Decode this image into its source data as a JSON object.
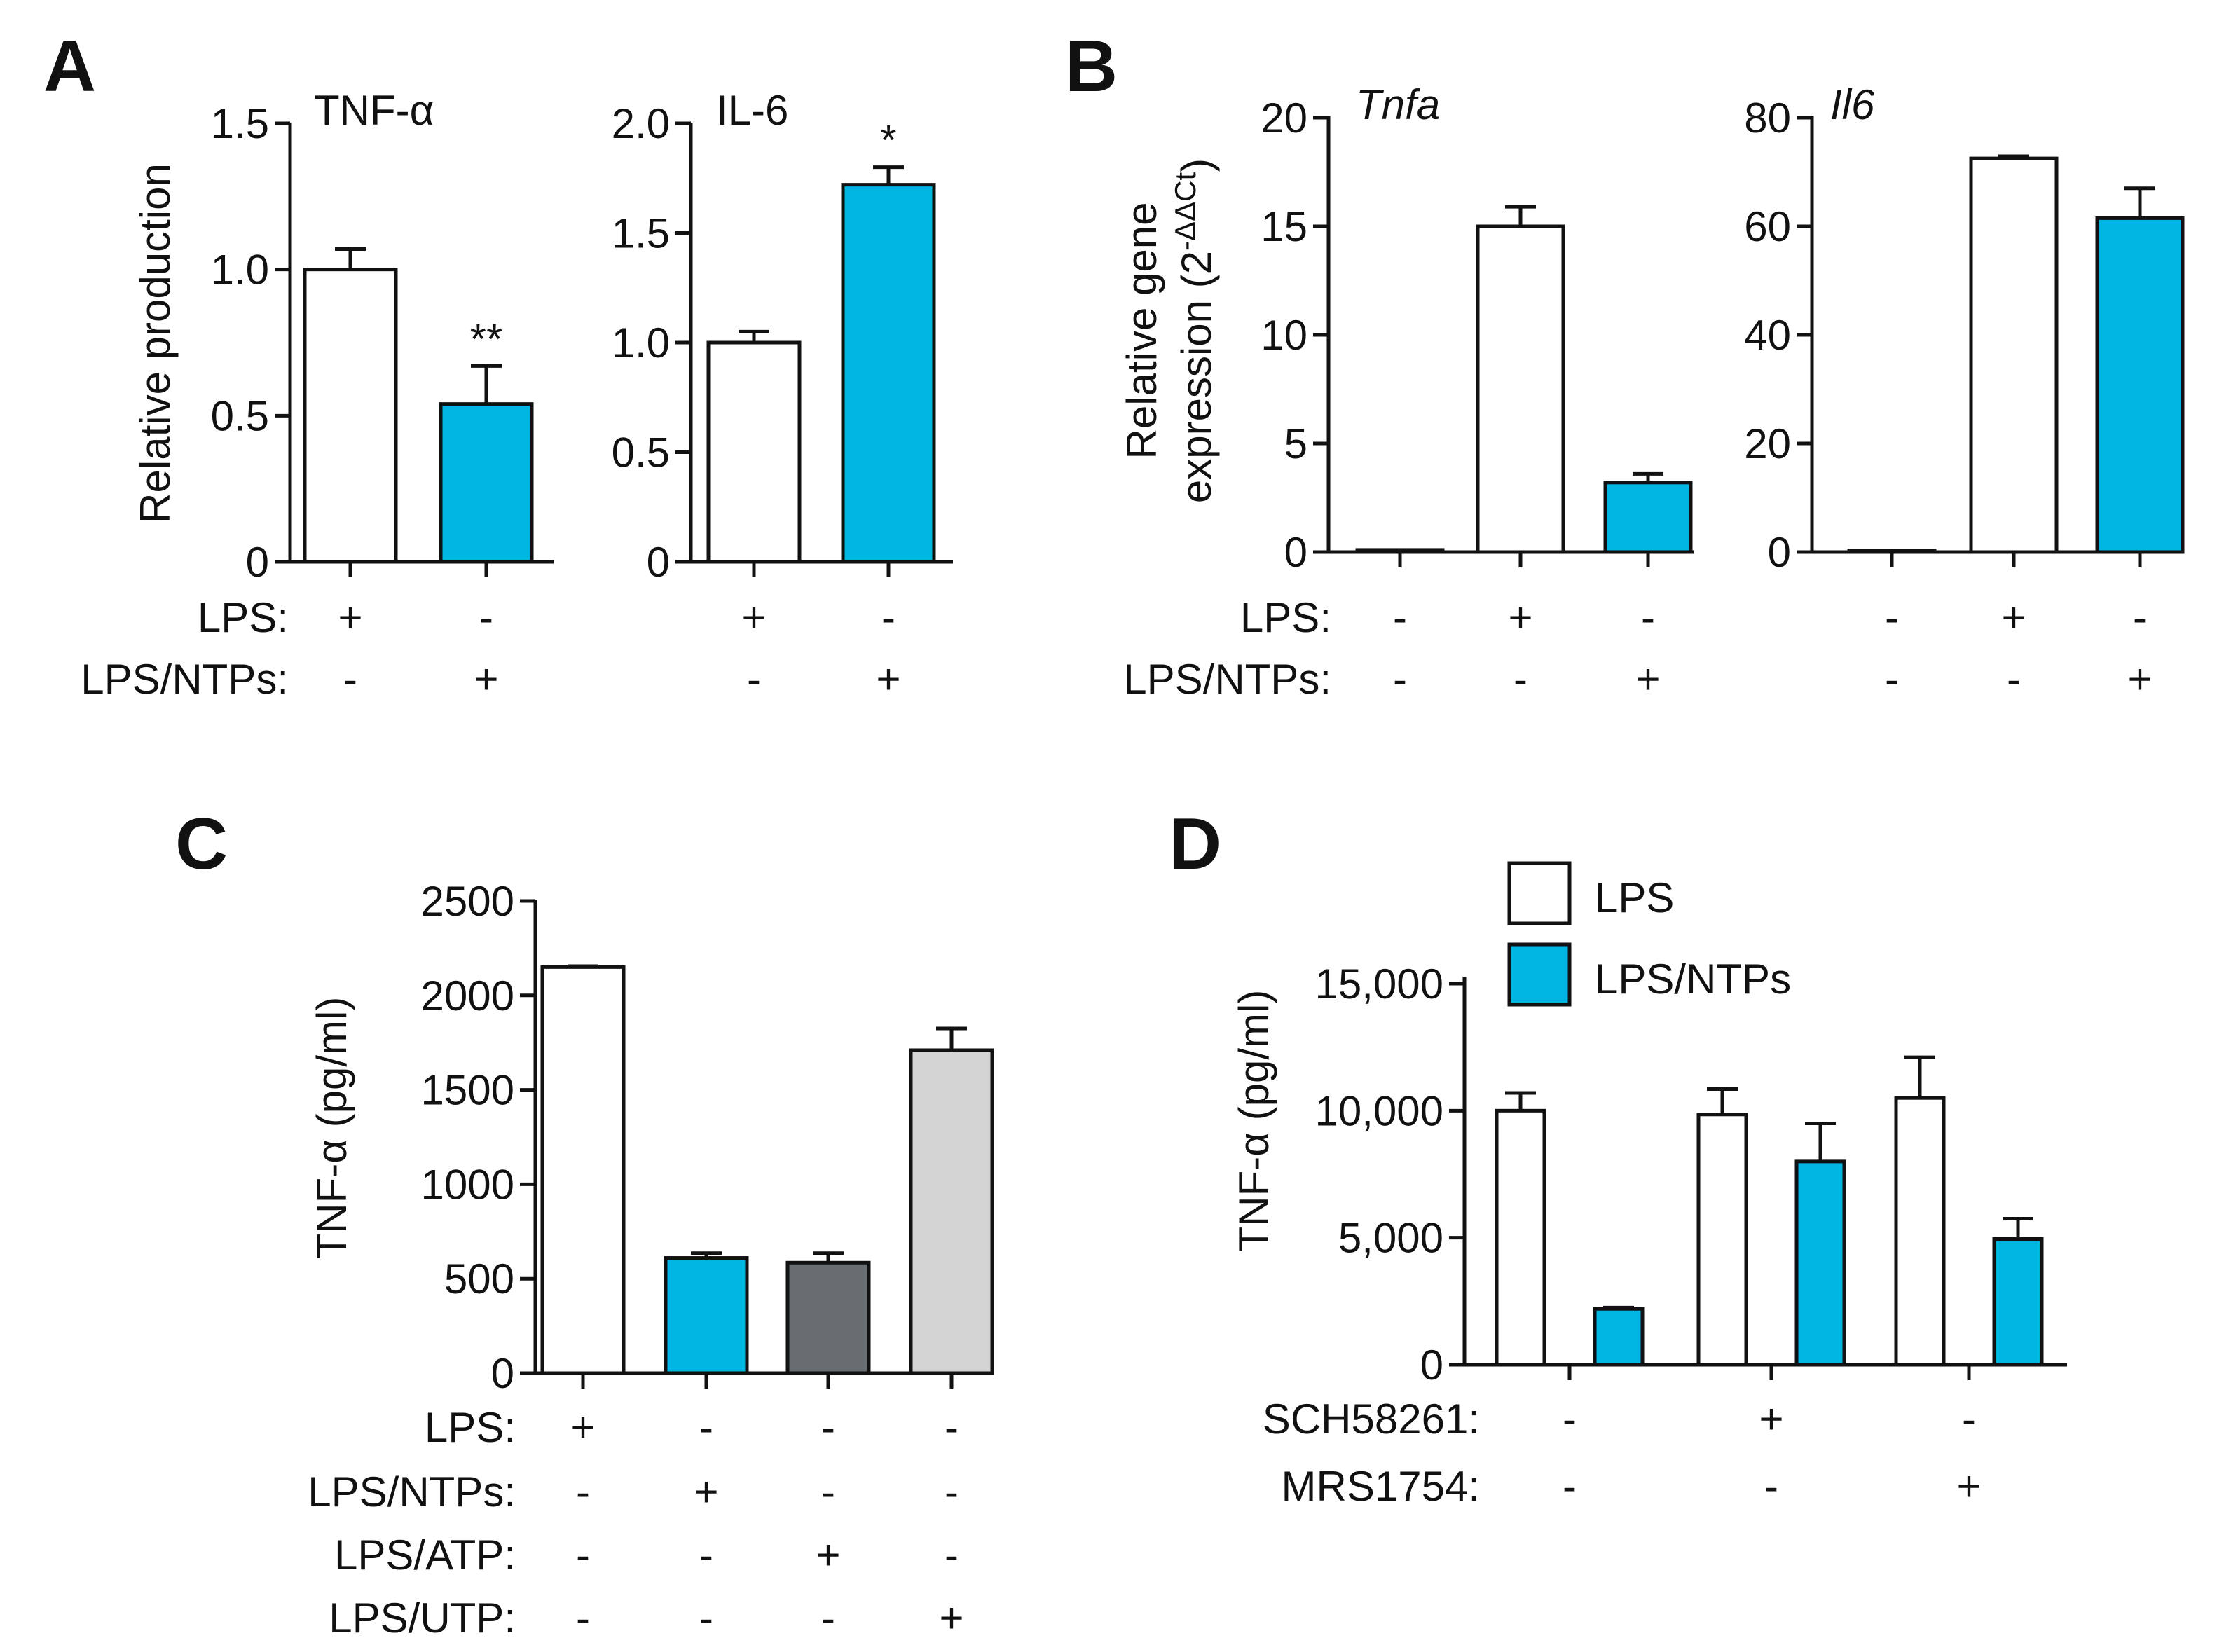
{
  "figure": {
    "colors": {
      "white": "#ffffff",
      "blue": "#00b5e2",
      "dark_gray": "#676d70",
      "light_gray": "#d4d4d4",
      "axis": "#111111"
    }
  },
  "chart_data": [
    {
      "id": "A1",
      "panel_label": "A",
      "type": "bar",
      "title": "TNF-α",
      "ylabel": "Relative production",
      "xlabel": "",
      "ylim": [
        0,
        1.5
      ],
      "y_ticks": [
        {
          "v": 0,
          "label": "0"
        },
        {
          "v": 0.5,
          "label": "0.5"
        },
        {
          "v": 1.0,
          "label": "1.0"
        },
        {
          "v": 1.5,
          "label": "1.5"
        }
      ],
      "rows": [
        {
          "label": "LPS:",
          "signs": [
            "+",
            "-"
          ]
        },
        {
          "label": "LPS/NTPs:",
          "signs": [
            "-",
            "+"
          ]
        }
      ],
      "bars": [
        {
          "value": 1.0,
          "error": 0.07,
          "color": "#ffffff",
          "sig": ""
        },
        {
          "value": 0.54,
          "error": 0.13,
          "color": "#00b5e2",
          "sig": "**"
        }
      ]
    },
    {
      "id": "A2",
      "type": "bar",
      "title": "IL-6",
      "ylabel": "",
      "xlabel": "",
      "ylim": [
        0,
        2.0
      ],
      "y_ticks": [
        {
          "v": 0,
          "label": "0"
        },
        {
          "v": 0.5,
          "label": "0.5"
        },
        {
          "v": 1.0,
          "label": "1.0"
        },
        {
          "v": 1.5,
          "label": "1.5"
        },
        {
          "v": 2.0,
          "label": "2.0"
        }
      ],
      "rows": [
        {
          "signs": [
            "+",
            "-"
          ]
        },
        {
          "signs": [
            "-",
            "+"
          ]
        }
      ],
      "bars": [
        {
          "value": 1.0,
          "error": 0.05,
          "color": "#ffffff",
          "sig": ""
        },
        {
          "value": 1.72,
          "error": 0.08,
          "color": "#00b5e2",
          "sig": "*"
        }
      ]
    },
    {
      "id": "B1",
      "panel_label": "B",
      "type": "bar",
      "title": "Tnfa",
      "ylabel_line1": "Relative gene",
      "ylabel_line2": "expression (2",
      "ylabel_sup": "-ΔΔCt",
      "ylabel_close": ")",
      "ylim": [
        0,
        20
      ],
      "y_ticks": [
        {
          "v": 0,
          "label": "0"
        },
        {
          "v": 5,
          "label": "5"
        },
        {
          "v": 10,
          "label": "10"
        },
        {
          "v": 15,
          "label": "15"
        },
        {
          "v": 20,
          "label": "20"
        }
      ],
      "rows": [
        {
          "label": "LPS:",
          "signs": [
            "-",
            "+",
            "-"
          ]
        },
        {
          "label": "LPS/NTPs:",
          "signs": [
            "-",
            "-",
            "+"
          ]
        }
      ],
      "bars": [
        {
          "value": 0.1,
          "error": 0,
          "color": "#ffffff"
        },
        {
          "value": 15.0,
          "error": 0.9,
          "color": "#ffffff"
        },
        {
          "value": 3.2,
          "error": 0.4,
          "color": "#00b5e2"
        }
      ]
    },
    {
      "id": "B2",
      "type": "bar",
      "title": "Il6",
      "ylim": [
        0,
        80
      ],
      "y_ticks": [
        {
          "v": 0,
          "label": "0"
        },
        {
          "v": 20,
          "label": "20"
        },
        {
          "v": 40,
          "label": "40"
        },
        {
          "v": 60,
          "label": "60"
        },
        {
          "v": 80,
          "label": "80"
        }
      ],
      "rows": [
        {
          "signs": [
            "-",
            "+",
            "-"
          ]
        },
        {
          "signs": [
            "-",
            "-",
            "+"
          ]
        }
      ],
      "bars": [
        {
          "value": 0,
          "error": 0,
          "color": "#ffffff"
        },
        {
          "value": 72.5,
          "error": 0.4,
          "color": "#ffffff"
        },
        {
          "value": 61.5,
          "error": 5.5,
          "color": "#00b5e2"
        }
      ]
    },
    {
      "id": "C",
      "panel_label": "C",
      "type": "bar",
      "ylabel": "TNF-α (pg/ml)",
      "ylim": [
        0,
        2500
      ],
      "y_ticks": [
        {
          "v": 0,
          "label": "0"
        },
        {
          "v": 500,
          "label": "500"
        },
        {
          "v": 1000,
          "label": "1000"
        },
        {
          "v": 1500,
          "label": "1500"
        },
        {
          "v": 2000,
          "label": "2000"
        },
        {
          "v": 2500,
          "label": "2500"
        }
      ],
      "rows": [
        {
          "label": "LPS:",
          "signs": [
            "+",
            "-",
            "-",
            "-"
          ]
        },
        {
          "label": "LPS/NTPs:",
          "signs": [
            "-",
            "+",
            "-",
            "-"
          ]
        },
        {
          "label": "LPS/ATP:",
          "signs": [
            "-",
            "-",
            "+",
            "-"
          ]
        },
        {
          "label": "LPS/UTP:",
          "signs": [
            "-",
            "-",
            "-",
            "+"
          ]
        }
      ],
      "bars": [
        {
          "value": 2150,
          "error": 5,
          "color": "#ffffff"
        },
        {
          "value": 610,
          "error": 25,
          "color": "#00b5e2"
        },
        {
          "value": 585,
          "error": 50,
          "color": "#676d70"
        },
        {
          "value": 1710,
          "error": 115,
          "color": "#d4d4d4"
        }
      ]
    },
    {
      "id": "D",
      "panel_label": "D",
      "type": "bar",
      "ylabel": "TNF-α (pg/ml)",
      "ylim": [
        0,
        15000
      ],
      "y_ticks": [
        {
          "v": 0,
          "label": "0"
        },
        {
          "v": 5000,
          "label": "5,000"
        },
        {
          "v": 10000,
          "label": "10,000"
        },
        {
          "v": 15000,
          "label": "15,000"
        }
      ],
      "legend": [
        {
          "label": "LPS",
          "color": "#ffffff"
        },
        {
          "label": "LPS/NTPs",
          "color": "#00b5e2"
        }
      ],
      "rows": [
        {
          "label": "SCH58261:",
          "signs": [
            "-",
            "+",
            "-"
          ]
        },
        {
          "label": "MRS1754:",
          "signs": [
            "-",
            "-",
            "+"
          ]
        }
      ],
      "series": [
        {
          "name": "LPS",
          "values": [
            10000,
            9850,
            10500
          ],
          "errors": [
            700,
            1000,
            1600
          ],
          "color": "#ffffff"
        },
        {
          "name": "LPS/NTPs",
          "values": [
            2200,
            8000,
            4950
          ],
          "errors": [
            50,
            1500,
            800
          ],
          "color": "#00b5e2"
        }
      ]
    }
  ]
}
